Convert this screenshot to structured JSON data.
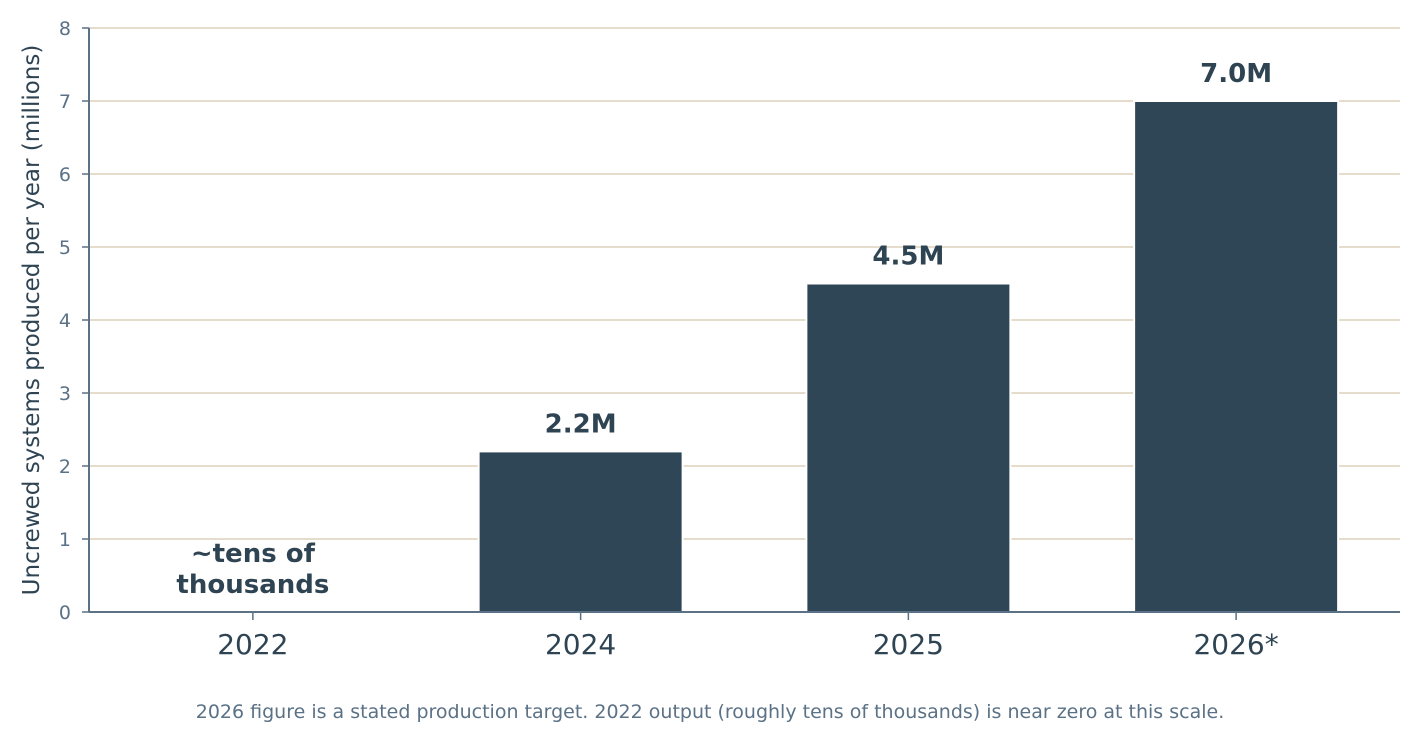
{
  "chart_data": {
    "type": "bar",
    "categories": [
      "2022",
      "2024",
      "2025",
      "2026*"
    ],
    "values": [
      0.0,
      2.2,
      4.5,
      7.0
    ],
    "data_labels": [
      "~tens of\nthousands",
      "2.2M",
      "4.5M",
      "7.0M"
    ],
    "title": "",
    "xlabel": "",
    "ylabel": "Uncrewed systems produced per year (millions)",
    "ylim": [
      0,
      8
    ],
    "yticks": [
      "0",
      "1",
      "2",
      "3",
      "4",
      "5",
      "6",
      "7",
      "8"
    ],
    "grid": "horizontal",
    "bar_color": "#2f4656",
    "footnote": "2026 figure is a stated production target. 2022 output (roughly tens of thousands) is near zero at this scale."
  },
  "colors": {
    "bar": "#2f4656",
    "grid": "#e6dccb",
    "axis": "#5a7186",
    "text_dark": "#2f4453",
    "text_muted": "#5a7186"
  }
}
